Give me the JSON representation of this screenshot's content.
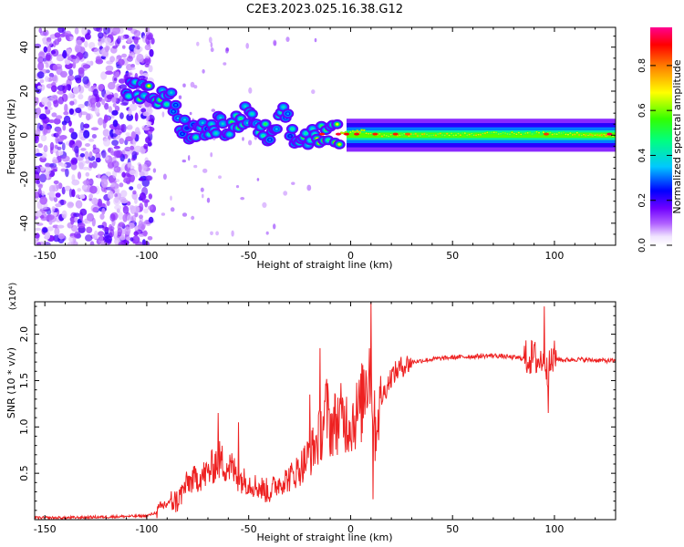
{
  "page_title": "C2E3.2023.025.16.38.G12",
  "chart_data": [
    {
      "type": "heatmap",
      "title": "C2E3.2023.025.16.38.G12",
      "xlabel": "Height of straight line (km)",
      "ylabel": "Frequency (Hz)",
      "xlim": [
        -155,
        130
      ],
      "ylim": [
        -50,
        49
      ],
      "x_ticks": [
        -150,
        -100,
        -50,
        0,
        50,
        100
      ],
      "y_ticks": [
        -40,
        -20,
        0,
        20,
        40
      ],
      "colorbar": {
        "label": "Normalized spectral amplitude",
        "ticks": [
          "0.0",
          "0.2",
          "0.4",
          "0.6",
          "0.8"
        ],
        "tick_values": [
          0.0,
          0.2,
          0.4,
          0.6,
          0.8
        ],
        "range": [
          0,
          0.97
        ],
        "colormap": [
          "#ffffff",
          "#8a00ff",
          "#0000ff",
          "#00e5ff",
          "#00ff00",
          "#ffff00",
          "#ff8c00",
          "#ff0000",
          "#ff00a0"
        ]
      },
      "features": {
        "noise_region_x": [
          -155,
          -97
        ],
        "signal_track": [
          {
            "x": -108,
            "y": 21,
            "v": 0.45
          },
          {
            "x": -98,
            "y": 18,
            "v": 0.7
          },
          {
            "x": -88,
            "y": 15,
            "v": 0.4
          },
          {
            "x": -82,
            "y": 3,
            "v": 0.35
          },
          {
            "x": -75,
            "y": 1,
            "v": 0.45
          },
          {
            "x": -65,
            "y": 4,
            "v": 0.5
          },
          {
            "x": -58,
            "y": 3,
            "v": 0.55
          },
          {
            "x": -52,
            "y": 9,
            "v": 0.6
          },
          {
            "x": -45,
            "y": 2,
            "v": 0.5
          },
          {
            "x": -38,
            "y": -1,
            "v": 0.55
          },
          {
            "x": -32,
            "y": 10,
            "v": 0.4
          },
          {
            "x": -28,
            "y": -3,
            "v": 0.5
          },
          {
            "x": -20,
            "y": 0,
            "v": 0.6
          },
          {
            "x": -10,
            "y": 0,
            "v": 0.75
          },
          {
            "x": 0,
            "y": 1,
            "v": 0.8
          },
          {
            "x": 5,
            "y": 2,
            "v": 0.8
          },
          {
            "x": 15,
            "y": 0,
            "v": 0.75
          },
          {
            "x": 95,
            "y": 1,
            "v": 0.7
          },
          {
            "x": 130,
            "y": 0,
            "v": 0.8
          }
        ]
      }
    },
    {
      "type": "line",
      "xlabel": "Height of straight line (km)",
      "ylabel": "SNR (10 * v/v)",
      "y_multiplier": "(x10⁴)",
      "xlim": [
        -155,
        130
      ],
      "ylim": [
        0,
        2.35
      ],
      "x_ticks": [
        -150,
        -100,
        -50,
        0,
        50,
        100
      ],
      "y_ticks": [
        0.5,
        1.0,
        1.5,
        2.0
      ],
      "y_tick_labels": [
        "0.5",
        "1.0",
        "1.5",
        "2.0"
      ],
      "series": [
        {
          "color": "#ee2222",
          "x": [
            -155,
            -140,
            -120,
            -100,
            -95,
            -92,
            -88,
            -85,
            -80,
            -75,
            -70,
            -65,
            -62,
            -58,
            -55,
            -50,
            -45,
            -40,
            -35,
            -30,
            -25,
            -20,
            -15,
            -12,
            -10,
            -5,
            0,
            5,
            8,
            10,
            12,
            15,
            20,
            25,
            30,
            40,
            50,
            60,
            70,
            80,
            85,
            90,
            93,
            95,
            97,
            99,
            100,
            105,
            110,
            120,
            130
          ],
          "y": [
            0.02,
            0.02,
            0.03,
            0.04,
            0.08,
            0.15,
            0.2,
            0.2,
            0.4,
            0.45,
            0.5,
            0.65,
            0.6,
            0.55,
            0.45,
            0.4,
            0.35,
            0.3,
            0.4,
            0.45,
            0.55,
            0.7,
            0.9,
            1.2,
            1.0,
            1.1,
            1.05,
            1.2,
            1.6,
            1.7,
            0.95,
            1.3,
            1.55,
            1.65,
            1.7,
            1.73,
            1.75,
            1.76,
            1.77,
            1.75,
            1.74,
            1.75,
            1.7,
            1.8,
            1.6,
            1.72,
            1.74,
            1.72,
            1.73,
            1.72,
            1.71
          ],
          "spikes": [
            {
              "x": -65,
              "y": 1.15
            },
            {
              "x": -55,
              "y": 1.05
            },
            {
              "x": -20,
              "y": 1.35
            },
            {
              "x": -15,
              "y": 1.85
            },
            {
              "x": 10,
              "y": 2.35
            },
            {
              "x": 11,
              "y": 0.22
            },
            {
              "x": 95,
              "y": 2.3
            },
            {
              "x": 97,
              "y": 1.15
            }
          ]
        }
      ]
    }
  ]
}
